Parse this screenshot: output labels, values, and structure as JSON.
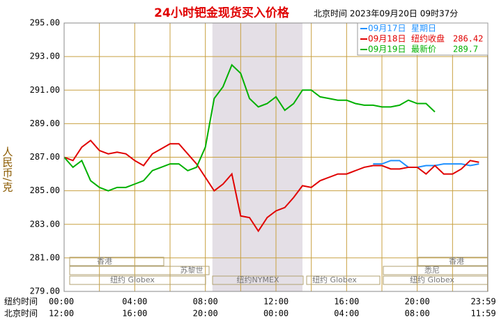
{
  "chart_data": {
    "type": "line",
    "title": "24小时钯金现货买入价格",
    "subtitle": "北京时间 2023年09月20日 09时37分",
    "ylabel": "人民币/克",
    "row_labels": [
      "纽约时间",
      "北京时间"
    ],
    "x": [
      0,
      0.5,
      1,
      1.5,
      2,
      2.5,
      3,
      3.5,
      4,
      4.5,
      5,
      5.5,
      6,
      6.5,
      7,
      7.5,
      8,
      8.5,
      9,
      9.5,
      10,
      10.5,
      11,
      11.5,
      12,
      12.5,
      13,
      13.5,
      14,
      14.5,
      15,
      15.5,
      16,
      16.5,
      17,
      17.5,
      18,
      18.5,
      19,
      19.5,
      20,
      20.5,
      21,
      21.5,
      22,
      22.5,
      23,
      23.5
    ],
    "xlim": [
      0,
      24
    ],
    "xticks": [
      {
        "value": 0,
        "label": "00:00"
      },
      {
        "value": 4,
        "label": "04:00"
      },
      {
        "value": 8,
        "label": "08:00"
      },
      {
        "value": 12,
        "label": "12:00"
      },
      {
        "value": 16,
        "label": "16:00"
      },
      {
        "value": 20,
        "label": "20:00"
      },
      {
        "value": 23.983,
        "label": "23:59"
      }
    ],
    "xticks_beijing": [
      "12:00",
      "16:00",
      "20:00",
      "00:00",
      "04:00",
      "08:00",
      "11:59"
    ],
    "xgrid_minor": [
      2,
      6,
      10,
      14,
      18,
      22
    ],
    "shade": [
      8.4,
      13.5
    ],
    "ylim": [
      279,
      295
    ],
    "yticks": [
      {
        "value": 279,
        "label": "279.00"
      },
      {
        "value": 281,
        "label": "281.00"
      },
      {
        "value": 283,
        "label": "283.00"
      },
      {
        "value": 285,
        "label": "285.00"
      },
      {
        "value": 287,
        "label": "287.00"
      },
      {
        "value": 289,
        "label": "289.00"
      },
      {
        "value": 291,
        "label": "291.00"
      },
      {
        "value": 293,
        "label": "293.00"
      },
      {
        "value": 295,
        "label": "295.00"
      }
    ],
    "grid": true,
    "session_labels": [
      "香港",
      "苏黎世",
      "纽约 Globex",
      "纽约NYMEX",
      "纽约 Globex",
      "悉尼",
      "香港",
      "纽约 Globex"
    ],
    "series": [
      {
        "name": "09月17日",
        "note": "星期日",
        "color": "#1e90ff",
        "values": [
          null,
          null,
          null,
          null,
          null,
          null,
          null,
          null,
          null,
          null,
          null,
          null,
          null,
          null,
          null,
          null,
          null,
          null,
          null,
          null,
          null,
          null,
          null,
          null,
          null,
          null,
          null,
          null,
          null,
          null,
          null,
          null,
          null,
          null,
          null,
          286.6,
          286.6,
          286.8,
          286.8,
          286.4,
          286.4,
          286.5,
          286.5,
          286.6,
          286.6,
          286.6,
          286.5,
          286.6
        ]
      },
      {
        "name": "09月18日",
        "note": "纽约收盘",
        "note_value": 286.42,
        "color": "#e00000",
        "values": [
          287,
          286.8,
          287.6,
          288,
          287.4,
          287.2,
          287.3,
          287.2,
          286.8,
          286.5,
          287.2,
          287.5,
          287.8,
          287.8,
          287.2,
          286.6,
          285.8,
          285,
          285.4,
          286,
          283.5,
          283.4,
          282.6,
          283.4,
          283.8,
          284,
          284.6,
          285.3,
          285.2,
          285.6,
          285.8,
          286,
          286,
          286.2,
          286.4,
          286.5,
          286.5,
          286.3,
          286.3,
          286.4,
          286.4,
          286,
          286.5,
          286,
          286,
          286.3,
          286.8,
          286.7
        ]
      },
      {
        "name": "09月19日",
        "note": "最新价",
        "note_value": 289.7,
        "color": "#00b000",
        "values": [
          287,
          286.4,
          286.8,
          285.6,
          285.2,
          285,
          285.2,
          285.2,
          285.4,
          285.6,
          286.2,
          286.4,
          286.6,
          286.6,
          286.2,
          286.4,
          287.6,
          290.5,
          291.2,
          292.5,
          292,
          290.5,
          290,
          290.2,
          290.6,
          289.8,
          290.2,
          291,
          291,
          290.6,
          290.5,
          290.4,
          290.4,
          290.2,
          290.1,
          290.1,
          290,
          290,
          290.1,
          290.4,
          290.2,
          290.2,
          289.7,
          null,
          null,
          null,
          null,
          null
        ]
      }
    ]
  }
}
